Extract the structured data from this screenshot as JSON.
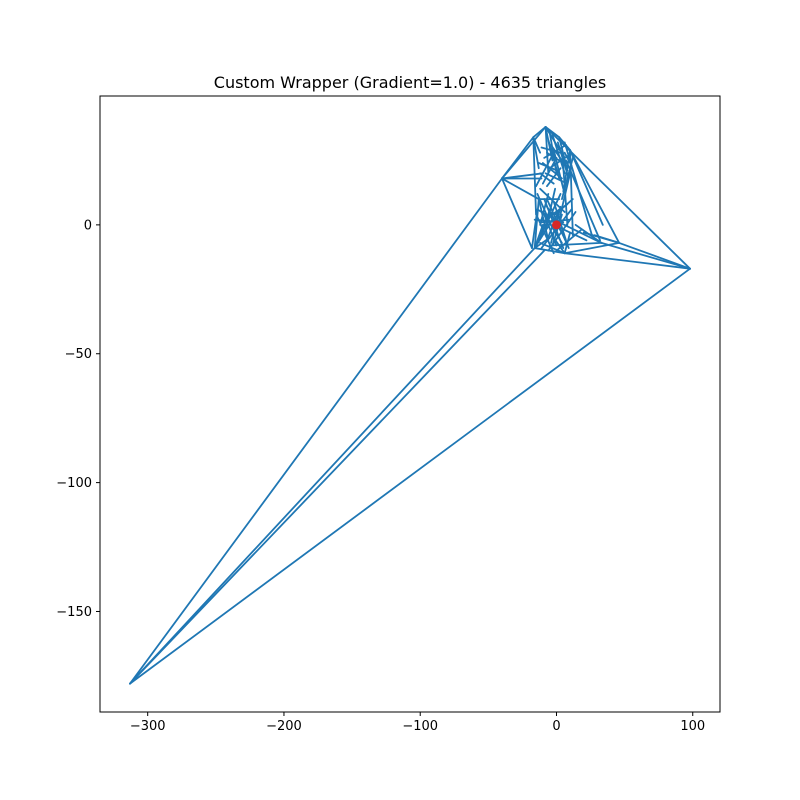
{
  "chart_data": {
    "type": "line",
    "title": "Custom Wrapper (Gradient=1.0) - 4635 triangles",
    "xlabel": "",
    "ylabel": "",
    "xlim": [
      -335,
      120
    ],
    "ylim": [
      -189,
      50
    ],
    "x_ticks": [
      -300,
      -200,
      -100,
      0,
      100
    ],
    "x_tick_labels": [
      "−300",
      "−200",
      "−100",
      "0",
      "100"
    ],
    "y_ticks": [
      0,
      -50,
      -100,
      -150
    ],
    "y_tick_labels": [
      "0",
      "−50",
      "−100",
      "−150"
    ],
    "grid": false,
    "legend": "none",
    "colors": {
      "mesh": "#1f77b4",
      "center": "#d62728"
    },
    "series": [
      {
        "segments": [
          [
            [
              -313,
              -178
            ],
            [
              -40,
              18
            ]
          ],
          [
            [
              -313,
              -178
            ],
            [
              -16,
              -9
            ]
          ],
          [
            [
              -313,
              -178
            ],
            [
              -9,
              -10
            ]
          ],
          [
            [
              -313,
              -178
            ],
            [
              98,
              -17
            ]
          ],
          [
            [
              98,
              -17
            ],
            [
              -8,
              38
            ]
          ],
          [
            [
              98,
              -17
            ],
            [
              46,
              -7
            ]
          ],
          [
            [
              98,
              -17
            ],
            [
              6,
              -11
            ]
          ],
          [
            [
              98,
              -17
            ],
            [
              33,
              -7
            ]
          ],
          [
            [
              -40,
              18
            ],
            [
              -8,
              38
            ]
          ],
          [
            [
              -40,
              18
            ],
            [
              -17,
              34
            ]
          ],
          [
            [
              -40,
              18
            ],
            [
              -11,
              18
            ]
          ],
          [
            [
              -40,
              18
            ],
            [
              -18,
              -9
            ]
          ],
          [
            [
              -40,
              18
            ],
            [
              -10,
              20
            ]
          ],
          [
            [
              -40,
              18
            ],
            [
              -13,
              10
            ]
          ],
          [
            [
              -17,
              34
            ],
            [
              -8,
              38
            ]
          ],
          [
            [
              -8,
              38
            ],
            [
              2,
              34
            ]
          ],
          [
            [
              -8,
              38
            ],
            [
              -3,
              25
            ]
          ],
          [
            [
              -8,
              38
            ],
            [
              6,
              26
            ]
          ],
          [
            [
              -8,
              38
            ],
            [
              -6,
              20
            ]
          ],
          [
            [
              2,
              34
            ],
            [
              10,
              29
            ]
          ],
          [
            [
              2,
              34
            ],
            [
              8,
              21
            ]
          ],
          [
            [
              10,
              29
            ],
            [
              46,
              -7
            ]
          ],
          [
            [
              10,
              29
            ],
            [
              34,
              0
            ]
          ],
          [
            [
              10,
              29
            ],
            [
              12,
              -4
            ]
          ],
          [
            [
              10,
              29
            ],
            [
              5,
              13
            ]
          ],
          [
            [
              6,
              32
            ],
            [
              26,
              -4
            ]
          ],
          [
            [
              4,
              30
            ],
            [
              8,
              0
            ]
          ],
          [
            [
              7,
              25
            ],
            [
              32,
              -6
            ]
          ],
          [
            [
              46,
              -7
            ],
            [
              6,
              -11
            ]
          ],
          [
            [
              46,
              -7
            ],
            [
              20,
              -3
            ]
          ],
          [
            [
              46,
              -7
            ],
            [
              28,
              -4
            ]
          ],
          [
            [
              33,
              -7
            ],
            [
              -5,
              -8
            ]
          ],
          [
            [
              33,
              -7
            ],
            [
              -2,
              2
            ]
          ],
          [
            [
              33,
              -7
            ],
            [
              14,
              0
            ]
          ],
          [
            [
              -17,
              34
            ],
            [
              -13,
              22
            ]
          ],
          [
            [
              -17,
              34
            ],
            [
              -15,
              4
            ]
          ],
          [
            [
              -17,
              34
            ],
            [
              -12,
              28
            ]
          ],
          [
            [
              -13,
              10
            ],
            [
              -16,
              -9
            ]
          ],
          [
            [
              -13,
              10
            ],
            [
              2,
              10
            ]
          ],
          [
            [
              -13,
              10
            ],
            [
              -6,
              -6
            ]
          ],
          [
            [
              -16,
              -9
            ],
            [
              6,
              -11
            ]
          ],
          [
            [
              -16,
              -9
            ],
            [
              -5,
              -5
            ]
          ],
          [
            [
              -16,
              -9
            ],
            [
              -10,
              0
            ]
          ],
          [
            [
              -16,
              -9
            ],
            [
              -3,
              2
            ]
          ],
          [
            [
              6,
              -11
            ],
            [
              -12,
              -7
            ]
          ],
          [
            [
              6,
              -11
            ],
            [
              -2,
              -5
            ]
          ],
          [
            [
              6,
              -11
            ],
            [
              10,
              -3
            ]
          ],
          [
            [
              -18,
              -9
            ],
            [
              -14,
              6
            ]
          ],
          [
            [
              -14,
              6
            ],
            [
              -8,
              4
            ]
          ],
          [
            [
              -12,
              -4
            ],
            [
              -4,
              7
            ]
          ],
          [
            [
              -10,
              5
            ],
            [
              4,
              -7
            ]
          ],
          [
            [
              -8,
              8
            ],
            [
              6,
              -5
            ]
          ],
          [
            [
              -6,
              3
            ],
            [
              8,
              8
            ]
          ],
          [
            [
              -4,
              -7
            ],
            [
              3,
              7
            ]
          ],
          [
            [
              -2,
              9
            ],
            [
              7,
              -6
            ]
          ],
          [
            [
              0,
              -8
            ],
            [
              -9,
              4
            ]
          ],
          [
            [
              2,
              6
            ],
            [
              -7,
              -6
            ]
          ],
          [
            [
              4,
              4
            ],
            [
              -3,
              -8
            ]
          ],
          [
            [
              -11,
              1
            ],
            [
              9,
              2
            ]
          ],
          [
            [
              -9,
              10
            ],
            [
              5,
              -9
            ]
          ],
          [
            [
              -14,
              12
            ],
            [
              -4,
              0
            ]
          ],
          [
            [
              -6,
              12
            ],
            [
              -12,
              0
            ]
          ],
          [
            [
              -1,
              14
            ],
            [
              -8,
              -2
            ]
          ],
          [
            [
              -12,
              20
            ],
            [
              -2,
              16
            ]
          ],
          [
            [
              -10,
              24
            ],
            [
              4,
              18
            ]
          ],
          [
            [
              -7,
              28
            ],
            [
              5,
              24
            ]
          ],
          [
            [
              -4,
              31
            ],
            [
              8,
              22
            ]
          ],
          [
            [
              -11,
              30
            ],
            [
              3,
              28
            ]
          ],
          [
            [
              -9,
              26
            ],
            [
              7,
              31
            ]
          ],
          [
            [
              -5,
              22
            ],
            [
              9,
              27
            ]
          ],
          [
            [
              -13,
              24
            ],
            [
              1,
              21
            ]
          ],
          [
            [
              -3,
              35
            ],
            [
              6,
              20
            ]
          ],
          [
            [
              0,
              26
            ],
            [
              -10,
              16
            ]
          ],
          [
            [
              2,
              18
            ],
            [
              -6,
              33
            ]
          ],
          [
            [
              5,
              14
            ],
            [
              -2,
              29
            ]
          ],
          [
            [
              8,
              16
            ],
            [
              -8,
              20
            ]
          ],
          [
            [
              -15,
              15
            ],
            [
              -3,
              27
            ]
          ],
          [
            [
              1,
              32
            ],
            [
              9,
              18
            ]
          ],
          [
            [
              -7,
              15
            ],
            [
              3,
              22
            ]
          ],
          [
            [
              6,
              28
            ],
            [
              11,
              23
            ]
          ],
          [
            [
              -5,
              36
            ],
            [
              0,
              20
            ]
          ],
          [
            [
              12,
              26
            ],
            [
              4,
              10
            ]
          ],
          [
            [
              10,
              20
            ],
            [
              2,
              2
            ]
          ],
          [
            [
              -12,
              14
            ],
            [
              6,
              5
            ]
          ],
          [
            [
              -1,
              4
            ],
            [
              12,
              10
            ]
          ],
          [
            [
              14,
              5
            ],
            [
              -6,
              -10
            ]
          ],
          [
            [
              18,
              -2
            ],
            [
              0,
              -10
            ]
          ],
          [
            [
              22,
              -6
            ],
            [
              -2,
              0
            ]
          ],
          [
            [
              -13,
              -6
            ],
            [
              3,
              12
            ]
          ],
          [
            [
              9,
              -9
            ],
            [
              -7,
              10
            ]
          ],
          [
            [
              11,
              6
            ],
            [
              -11,
              -9
            ]
          ],
          [
            [
              -16,
              2
            ],
            [
              5,
              1
            ]
          ],
          [
            [
              -2,
              -11
            ],
            [
              -14,
              3
            ]
          ]
        ]
      }
    ],
    "center_point": {
      "x": 0,
      "y": 0
    }
  }
}
